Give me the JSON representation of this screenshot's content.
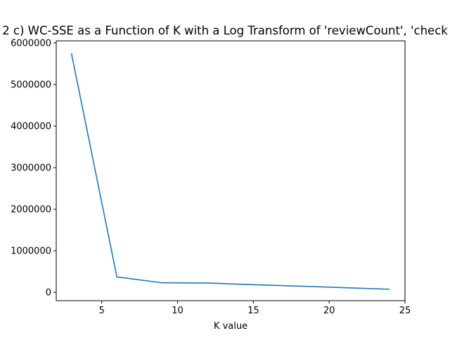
{
  "chart_data": {
    "type": "line",
    "title": "2 c) WC-SSE as a Function of K with a Log Transform of 'reviewCount', 'check",
    "xlabel": "K value",
    "ylabel": "",
    "xlim": [
      2.0,
      25.0
    ],
    "ylim": [
      -200000,
      6050000
    ],
    "x_ticks": [
      5,
      10,
      15,
      20,
      25
    ],
    "x_tick_labels": [
      "5",
      "10",
      "15",
      "20",
      "25"
    ],
    "y_ticks": [
      0,
      1000000,
      2000000,
      3000000,
      4000000,
      5000000,
      6000000
    ],
    "y_tick_labels": [
      "0",
      "1000000",
      "2000000",
      "3000000",
      "4000000",
      "5000000",
      "6000000"
    ],
    "grid": false,
    "series": [
      {
        "color": "#1f77b4",
        "x": [
          3,
          6,
          9,
          12,
          15,
          18,
          21,
          24
        ],
        "y": [
          5750000,
          370000,
          230000,
          225000,
          185000,
          150000,
          112000,
          75000
        ]
      }
    ]
  }
}
